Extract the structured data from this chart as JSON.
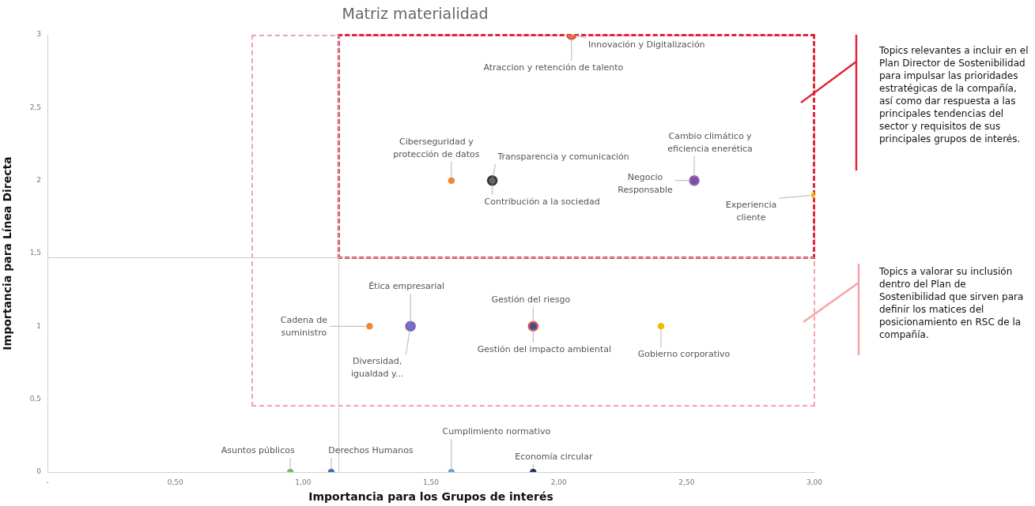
{
  "chart_data": {
    "type": "scatter",
    "title": "Matriz materialidad",
    "xlabel": "Importancia para los Grupos de interés",
    "ylabel": "Importancia para Línea Directa",
    "marker": "circle",
    "xlim": [
      0,
      3
    ],
    "ylim": [
      0,
      3
    ],
    "xticks": [
      {
        "value": 0,
        "label": "-"
      },
      {
        "value": 0.5,
        "label": "0,50"
      },
      {
        "value": 1,
        "label": "1,00"
      },
      {
        "value": 1.5,
        "label": "1,50"
      },
      {
        "value": 2,
        "label": "2,00"
      },
      {
        "value": 2.5,
        "label": "2,50"
      },
      {
        "value": 3,
        "label": "3,00"
      }
    ],
    "yticks": [
      0,
      {
        "value": 0.5,
        "label": "0,5"
      },
      1,
      {
        "value": 1.5,
        "label": "1,5"
      },
      2,
      {
        "value": 2.5,
        "label": "2,5"
      },
      3
    ],
    "ref_lines": [
      {
        "axis": "x",
        "value": 1.14,
        "color": "#cccccc"
      },
      {
        "axis": "y",
        "value": 1.47,
        "color": "#cccccc"
      }
    ],
    "series": [
      {
        "name": "Innovación y Digitalización",
        "color": "#d9534f",
        "x": [
          2.05
        ],
        "values": [
          3
        ]
      },
      {
        "name": "Atraccion y retención de talento",
        "color": "#e07b39",
        "x": [
          2.05
        ],
        "values": [
          3
        ]
      },
      {
        "name": "Ciberseguridad y protección de datos",
        "color": "#e8893a",
        "x": [
          1.58
        ],
        "values": [
          2
        ]
      },
      {
        "name": "Transparencia y comunicación",
        "color": "#333333",
        "x": [
          1.74
        ],
        "values": [
          2
        ]
      },
      {
        "name": "Contribución a la sociedad",
        "color": "#666666",
        "x": [
          1.74
        ],
        "values": [
          2
        ]
      },
      {
        "name": "Cambio climático y eficiencia enerética",
        "color": "#8e5bb5",
        "x": [
          2.53
        ],
        "values": [
          2
        ]
      },
      {
        "name": "Negocio Responsable",
        "color": "#7b4fa3",
        "x": [
          2.53
        ],
        "values": [
          2
        ]
      },
      {
        "name": "Experiencia cliente",
        "color": "#f5b800",
        "x": [
          3
        ],
        "values": [
          1.9
        ]
      },
      {
        "name": "Cadena de suministro",
        "color": "#e8893a",
        "x": [
          1.26
        ],
        "values": [
          1
        ]
      },
      {
        "name": "Ética empresarial",
        "color": "#8e5bb5",
        "x": [
          1.42
        ],
        "values": [
          1
        ]
      },
      {
        "name": "Diversidad, igualdad y...",
        "color": "#5b7fc7",
        "x": [
          1.42
        ],
        "values": [
          1
        ]
      },
      {
        "name": "Gestión del riesgo",
        "color": "#d9534f",
        "x": [
          1.9
        ],
        "values": [
          1
        ]
      },
      {
        "name": "Gestión del impacto ambiental",
        "color": "#2f5597",
        "x": [
          1.9
        ],
        "values": [
          1
        ]
      },
      {
        "name": "Gobierno corporativo",
        "color": "#f5b800",
        "x": [
          2.4
        ],
        "values": [
          1
        ]
      },
      {
        "name": "Asuntos públicos",
        "color": "#7cba5a",
        "x": [
          0.95
        ],
        "values": [
          0
        ]
      },
      {
        "name": "Derechos Humanos",
        "color": "#3b6fb6",
        "x": [
          1.11
        ],
        "values": [
          0
        ]
      },
      {
        "name": "Cumplimiento normativo",
        "color": "#5fa8e0",
        "x": [
          1.58
        ],
        "values": [
          0
        ]
      },
      {
        "name": "Economía circular",
        "color": "#1f3b6e",
        "x": [
          1.9
        ],
        "values": [
          0
        ]
      }
    ],
    "annotations": [
      "Topics relevantes a incluir en el Plan Director de Sostenibilidad para impulsar las prioridades estratégicas de la compañía, así como dar respuesta a las principales tendencias del sector y requisitos de sus principales grupos de interés.",
      "Topics a valorar su inclusión dentro del Plan de Sostenibilidad que sirven para definir los matices del posicionamiento en RSC de la compañía."
    ]
  }
}
